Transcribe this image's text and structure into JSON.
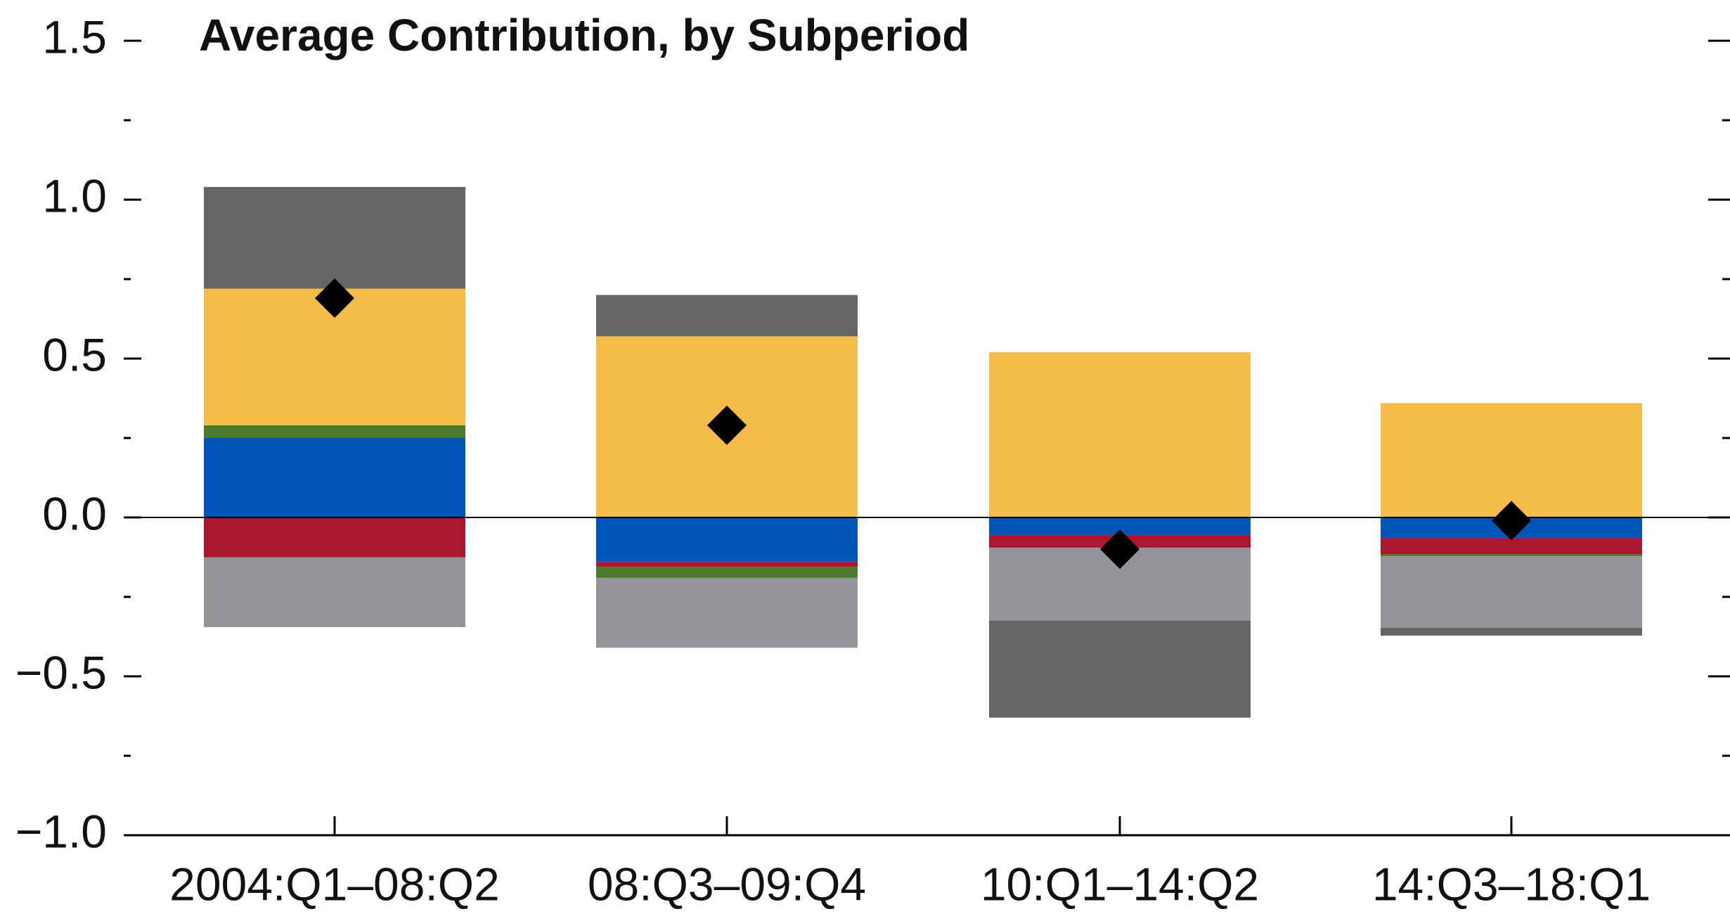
{
  "chart_data": {
    "type": "stacked-bar",
    "title": "Average Contribution, by Subperiod",
    "categories": [
      "2004:Q1–08:Q2",
      "08:Q3–09:Q4",
      "10:Q1–14:Q2",
      "14:Q3–18:Q1"
    ],
    "series": [
      {
        "color": "#0055b8",
        "values": [
          0.25,
          -0.14,
          -0.055,
          -0.065
        ]
      },
      {
        "color": "#a8172d",
        "values": [
          -0.125,
          -0.015,
          -0.04,
          -0.05
        ]
      },
      {
        "color": "#4a7a2c",
        "values": [
          0.04,
          -0.035,
          0,
          -0.007
        ]
      },
      {
        "color": "#f4bd4a",
        "values": [
          0.43,
          0.57,
          0.52,
          0.36
        ]
      },
      {
        "color": "#939598",
        "values": [
          -0.22,
          -0.22,
          -0.23,
          -0.225
        ]
      },
      {
        "color": "#646567",
        "values": [
          0.32,
          0.13,
          -0.305,
          -0.025
        ]
      }
    ],
    "net": {
      "marker": "diamond",
      "color": "#000000",
      "values": [
        0.69,
        0.29,
        -0.1,
        -0.01
      ]
    },
    "ylim": [
      -1,
      1.5
    ],
    "yticks": [
      {
        "value": -1,
        "label": "−1.0"
      },
      {
        "value": -0.5,
        "label": "−0.5"
      },
      {
        "value": 0,
        "label": "0.0"
      },
      {
        "value": 0.5,
        "label": "0.5"
      },
      {
        "value": 1,
        "label": "1.0"
      },
      {
        "value": 1.5,
        "label": "1.5"
      }
    ],
    "yminorticks": [
      -0.75,
      -0.25,
      0.25,
      0.75,
      1.25
    ],
    "right_axis_ticks": true
  }
}
